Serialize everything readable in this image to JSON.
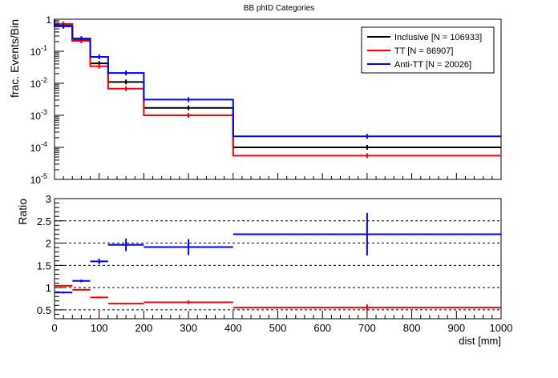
{
  "chart_data": [
    {
      "type": "line",
      "title": "BB phID Categories",
      "xlabel": "",
      "ylabel": "frac. Events/Bin",
      "yscale": "log",
      "ylim": [
        1e-05,
        1
      ],
      "xlim": [
        0,
        1000
      ],
      "ytick_labels": [
        {
          "base": "10",
          "exp": "-5",
          "v": 1e-05
        },
        {
          "base": "10",
          "exp": "-4",
          "v": 0.0001
        },
        {
          "base": "10",
          "exp": "-3",
          "v": 0.001
        },
        {
          "base": "10",
          "exp": "-2",
          "v": 0.01
        },
        {
          "base": "10",
          "exp": "-1",
          "v": 0.1
        },
        {
          "base": "1",
          "exp": "",
          "v": 1
        }
      ],
      "bin_edges": [
        0,
        40,
        80,
        120,
        200,
        400,
        1000
      ],
      "legend": {
        "position": "top-right"
      },
      "series": [
        {
          "name": "Inclusive [N = 106933]",
          "color": "#000000",
          "values": [
            0.68,
            0.22,
            0.042,
            0.011,
            0.0017,
            0.0001
          ]
        },
        {
          "name": "TT [N = 86907]",
          "color": "#ff0000",
          "values": [
            0.71,
            0.21,
            0.034,
            0.0068,
            0.001,
            5.5e-05
          ]
        },
        {
          "name": "Anti-TT [N = 20026]",
          "color": "#0000ff",
          "values": [
            0.6,
            0.25,
            0.067,
            0.021,
            0.0031,
            0.00022
          ]
        }
      ]
    },
    {
      "type": "line",
      "xlabel": "dist [mm]",
      "ylabel": "Ratio",
      "ylim": [
        0.3,
        3
      ],
      "xlim": [
        0,
        1000
      ],
      "xticks": [
        0,
        100,
        200,
        300,
        400,
        500,
        600,
        700,
        800,
        900,
        1000
      ],
      "xtick_labels": [
        "0",
        "100",
        "200",
        "300",
        "400",
        "500",
        "600",
        "700",
        "800",
        "900",
        "1000"
      ],
      "yticks": [
        0.5,
        1,
        1.5,
        2,
        2.5,
        3
      ],
      "ytick_labels": [
        "0.5",
        "1",
        "1.5",
        "2",
        "2.5",
        "3"
      ],
      "grid": "dashed horizontal at 0.5, 1, 1.5, 2, 2.5",
      "bin_edges": [
        0,
        40,
        80,
        120,
        200,
        400,
        1000
      ],
      "series": [
        {
          "color": "#ff0000",
          "values": [
            1.04,
            0.95,
            0.78,
            0.64,
            0.67,
            0.55
          ],
          "errors": [
            0.01,
            0.01,
            0.02,
            0.02,
            0.04,
            0.07
          ]
        },
        {
          "color": "#0000ff",
          "values": [
            0.89,
            1.15,
            1.59,
            1.96,
            1.91,
            2.2
          ],
          "errors": [
            0.02,
            0.03,
            0.06,
            0.14,
            0.18,
            0.48
          ]
        }
      ]
    }
  ]
}
